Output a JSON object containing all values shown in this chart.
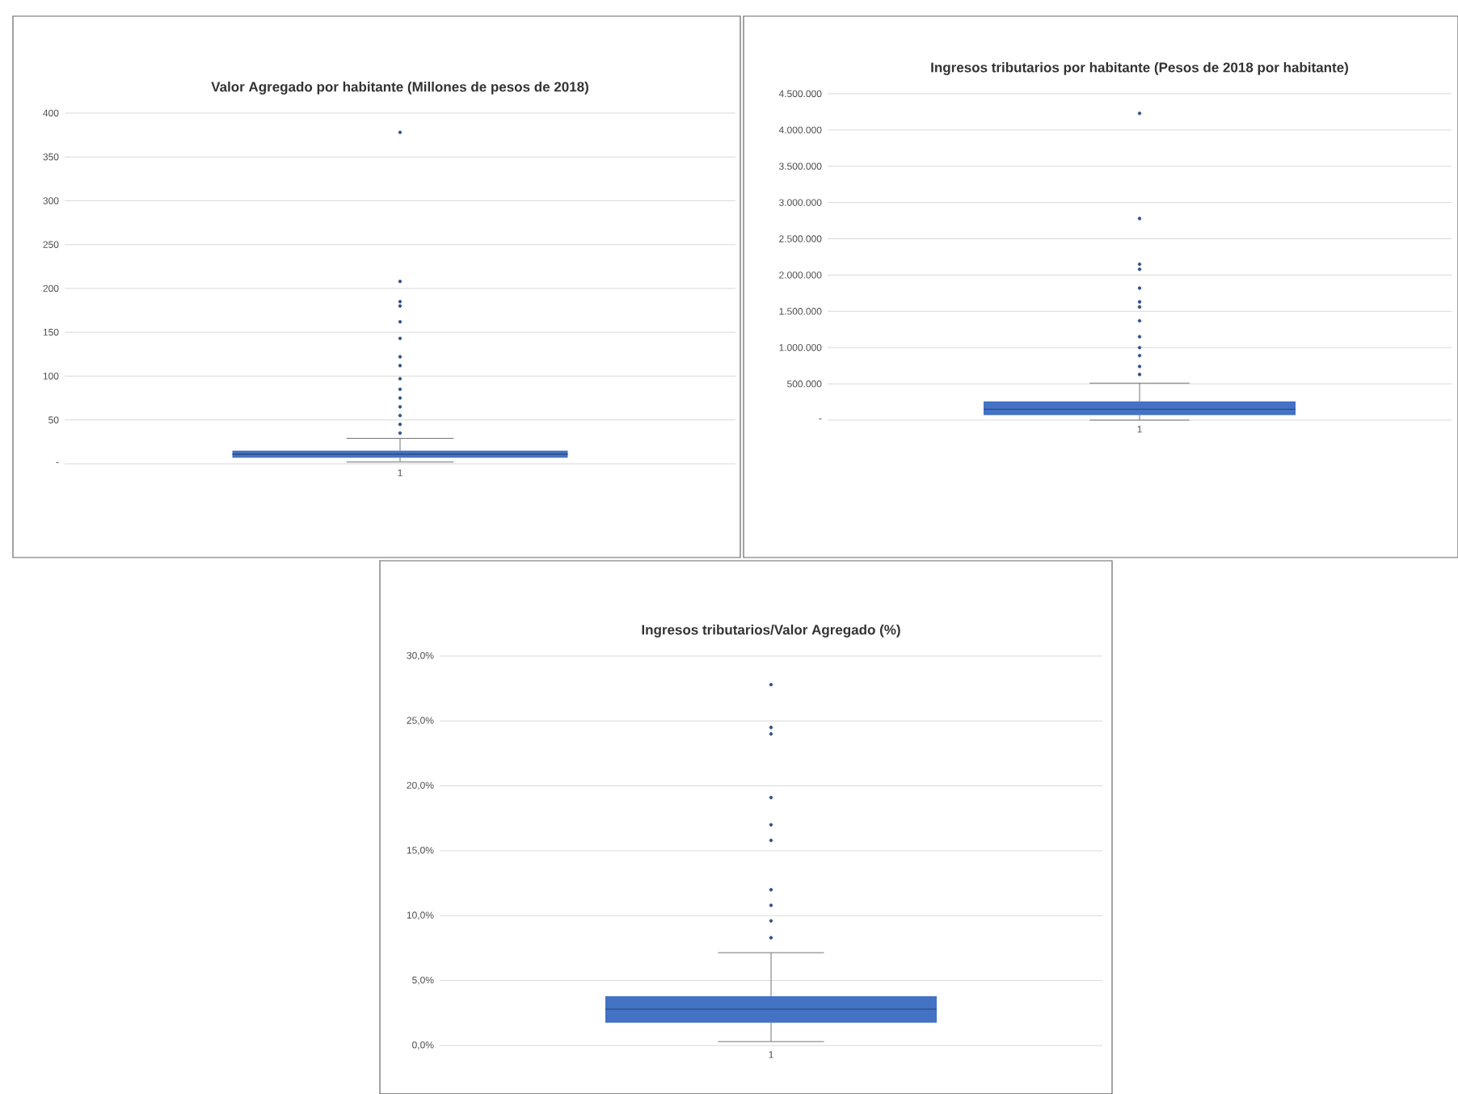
{
  "chart_data": [
    {
      "type": "box",
      "title": "Valor Agregado por habitante (Millones de pesos de 2018)",
      "categories": [
        "1"
      ],
      "color": "#4472c4",
      "grid": "y",
      "ylim": [
        0,
        400
      ],
      "yticks": [
        {
          "value": 0,
          "label": "-"
        },
        50,
        100,
        150,
        200,
        250,
        300,
        350,
        400
      ],
      "boxes": [
        {
          "low": 2,
          "q1": 7,
          "median": 11,
          "q3": 15,
          "high": 29,
          "outliers": [
            35,
            45,
            55,
            65,
            75,
            85,
            97,
            112,
            122,
            143,
            162,
            180,
            185,
            208,
            378
          ]
        }
      ]
    },
    {
      "type": "box",
      "title": "Ingresos tributarios por habitante (Pesos de 2018 por habitante)",
      "categories": [
        "1"
      ],
      "color": "#4472c4",
      "grid": "y",
      "ylim": [
        0,
        4500000
      ],
      "yticks": [
        {
          "value": 0,
          "label": "-"
        },
        {
          "value": 500000,
          "label": "500.000"
        },
        {
          "value": 1000000,
          "label": "1.000.000"
        },
        {
          "value": 1500000,
          "label": "1.500.000"
        },
        {
          "value": 2000000,
          "label": "2.000.000"
        },
        {
          "value": 2500000,
          "label": "2.500.000"
        },
        {
          "value": 3000000,
          "label": "3.000.000"
        },
        {
          "value": 3500000,
          "label": "3.500.000"
        },
        {
          "value": 4000000,
          "label": "4.000.000"
        },
        {
          "value": 4500000,
          "label": "4.500.000"
        }
      ],
      "boxes": [
        {
          "low": 0,
          "q1": 70000,
          "median": 150000,
          "q3": 260000,
          "high": 510000,
          "outliers": [
            630000,
            740000,
            890000,
            1000000,
            1150000,
            1370000,
            1560000,
            1630000,
            1820000,
            2080000,
            2150000,
            2780000,
            4230000
          ]
        }
      ]
    },
    {
      "type": "box",
      "title": "Ingresos tributarios/Valor Agregado (%)",
      "categories": [
        "1"
      ],
      "color": "#4472c4",
      "grid": "y",
      "ylim": [
        0,
        30
      ],
      "yticks": [
        {
          "value": 0,
          "label": "0,0%"
        },
        {
          "value": 5,
          "label": "5,0%"
        },
        {
          "value": 10,
          "label": "10,0%"
        },
        {
          "value": 15,
          "label": "15,0%"
        },
        {
          "value": 20,
          "label": "20,0%"
        },
        {
          "value": 25,
          "label": "25,0%"
        },
        {
          "value": 30,
          "label": "30,0%"
        }
      ],
      "boxes": [
        {
          "low": 0.3,
          "q1": 1.75,
          "median": 2.8,
          "q3": 3.8,
          "high": 7.15,
          "outliers": [
            8.3,
            9.6,
            10.8,
            12,
            15.8,
            17,
            19.1,
            24,
            24.5,
            27.8
          ]
        }
      ]
    }
  ]
}
